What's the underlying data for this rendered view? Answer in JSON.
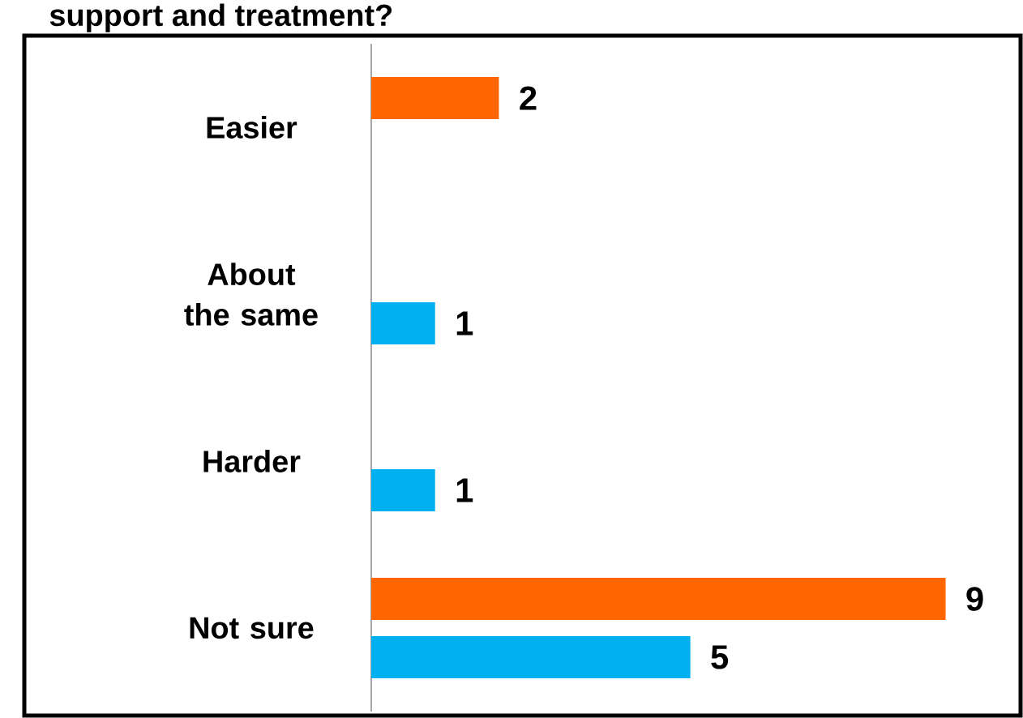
{
  "chart_data": {
    "type": "bar",
    "orientation": "horizontal",
    "title": "support and treatment?",
    "categories": [
      "Easier",
      "About the same",
      "Harder",
      "Not sure"
    ],
    "series": [
      {
        "color": "#ff6600",
        "values": [
          2,
          null,
          null,
          9
        ]
      },
      {
        "color": "#00b0f0",
        "values": [
          null,
          1,
          1,
          5
        ]
      }
    ],
    "data_labels": true,
    "tick_labels": "y"
  }
}
